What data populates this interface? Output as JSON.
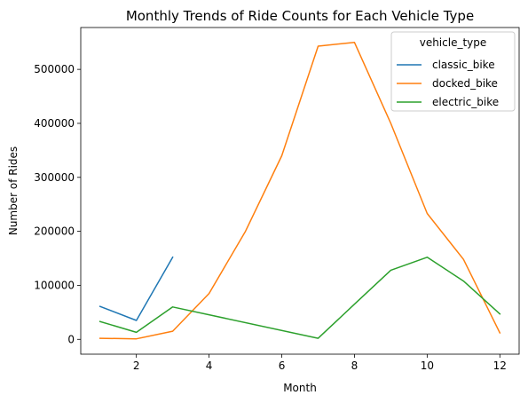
{
  "chart_data": {
    "type": "line",
    "title": "Monthly Trends of Ride Counts for Each Vehicle Type",
    "xlabel": "Month",
    "ylabel": "Number of Rides",
    "xlim": [
      0.47,
      12.53
    ],
    "ylim": [
      -27500,
      577500
    ],
    "xticks": [
      2,
      4,
      6,
      8,
      10,
      12
    ],
    "yticks": [
      0,
      100000,
      200000,
      300000,
      400000,
      500000
    ],
    "grid": false,
    "legend": {
      "title": "vehicle_type",
      "placement": "upper right"
    },
    "series": [
      {
        "name": "classic_bike",
        "color": "#1f77b4",
        "x": [
          1,
          2,
          3
        ],
        "values": [
          61000,
          35000,
          152000
        ]
      },
      {
        "name": "docked_bike",
        "color": "#ff7f0e",
        "x": [
          1,
          2,
          3,
          4,
          5,
          6,
          7,
          8,
          9,
          10,
          11,
          12
        ],
        "values": [
          2000,
          1000,
          15000,
          85000,
          200000,
          340000,
          543000,
          550000,
          400000,
          233000,
          148000,
          12000
        ]
      },
      {
        "name": "electric_bike",
        "color": "#2ca02c",
        "x": [
          1,
          2,
          3,
          7,
          8,
          9,
          10,
          11,
          12
        ],
        "values": [
          33000,
          13000,
          60000,
          2000,
          65000,
          128000,
          152000,
          108000,
          47000
        ]
      }
    ]
  }
}
